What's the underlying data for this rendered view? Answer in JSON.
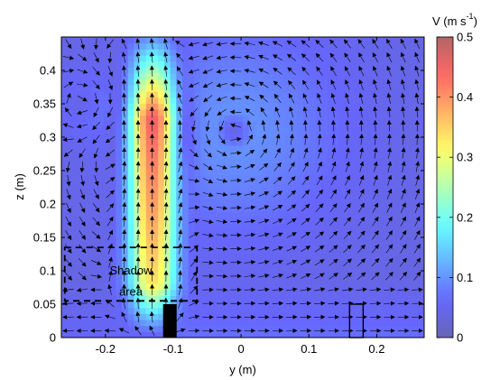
{
  "chart_data": {
    "type": "heatmap",
    "xlabel": "y (m)",
    "ylabel": "z (m)",
    "xlim": [
      -0.265,
      0.27
    ],
    "ylim": [
      0,
      0.45
    ],
    "x_ticks": [
      -0.2,
      -0.1,
      0,
      0.1,
      0.2
    ],
    "x_tick_labels": [
      "-0.2",
      "-0.1",
      "0",
      "0.1",
      "0.2"
    ],
    "y_ticks": [
      0,
      0.05,
      0.1,
      0.15,
      0.2,
      0.25,
      0.3,
      0.35,
      0.4
    ],
    "y_tick_labels": [
      "0",
      "0.05",
      "0.1",
      "0.15",
      "0.2",
      "0.25",
      "0.3",
      "0.35",
      "0.4"
    ],
    "colorbar": {
      "label": "V (m s",
      "label_exponent": "-1",
      "label_close": ")",
      "range": [
        0,
        0.5
      ],
      "ticks": [
        0,
        0.1,
        0.2,
        0.3,
        0.4,
        0.5
      ],
      "tick_labels": [
        "0",
        "0.1",
        "0.2",
        "0.3",
        "0.4",
        "0.5"
      ],
      "colormap": "jet",
      "alpha": 0.6
    },
    "field_features": {
      "jet": {
        "y_center": -0.13,
        "width": 0.035,
        "z_peak": 0.33,
        "v_peak": 0.45
      },
      "vortex_right": {
        "y_center": -0.01,
        "z_center": 0.31,
        "strength": 0.06
      },
      "vortex_left": {
        "y_center": -0.23,
        "z_center": 0.35,
        "strength": 0.03
      },
      "background_speed": 0.04
    },
    "annotations": {
      "shadow_box": {
        "y_range": [
          -0.26,
          -0.065
        ],
        "z_range": [
          0.055,
          0.135
        ],
        "line": "dashed"
      },
      "shadow_label_line1": "Shadow",
      "shadow_label_line2": "area",
      "inlet_block": {
        "y_range": [
          -0.115,
          -0.095
        ],
        "z_range": [
          0,
          0.05
        ],
        "fill": "#000000"
      },
      "outlet_box": {
        "y_range": [
          0.16,
          0.18
        ],
        "z_range": [
          0,
          0.05
        ],
        "line": "solid"
      }
    },
    "grid": false
  }
}
